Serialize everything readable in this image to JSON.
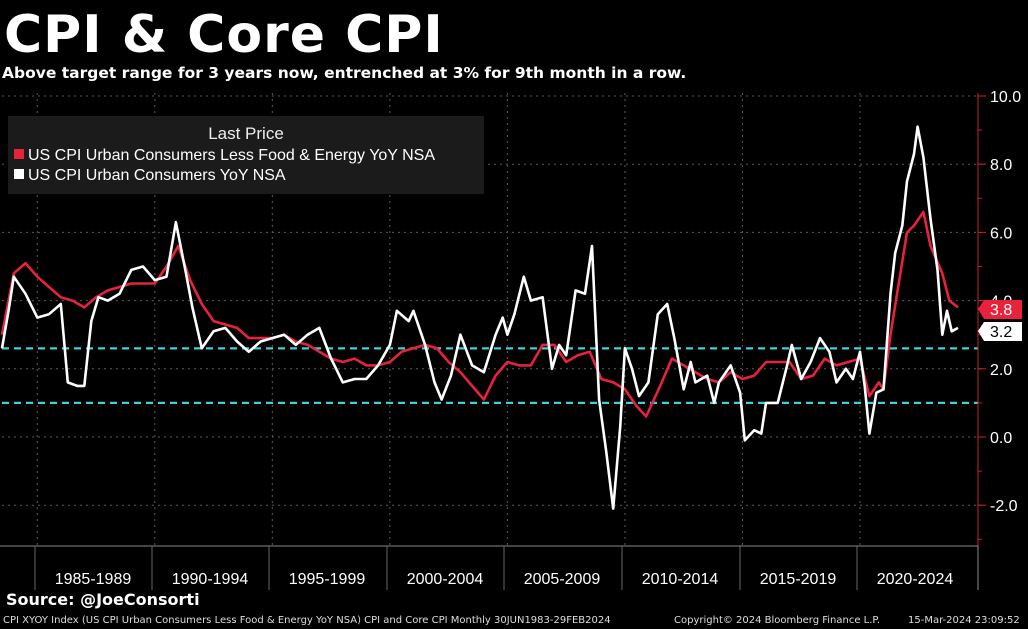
{
  "title": "CPI & Core CPI",
  "subtitle": "Above target range for 3 years now, entrenched at 3% for 9th month in a row.",
  "legend": {
    "title": "Last Price",
    "items": [
      {
        "label": "US CPI Urban Consumers Less Food & Energy YoY NSA",
        "color": "#e8213c"
      },
      {
        "label": "US CPI Urban Consumers YoY NSA",
        "color": "#ffffff"
      }
    ]
  },
  "source": "Source: @JoeConsorti",
  "footer": {
    "left": "CPI XYOY Index (US CPI Urban Consumers Less Food & Energy YoY NSA) CPI and Core CPI  Monthly 30JUN1983-29FEB2024",
    "center": "Copyright© 2024 Bloomberg Finance L.P.",
    "right": "15-Mar-2024 23:09:52"
  },
  "chart_data": {
    "type": "line",
    "x_range": [
      1983.5,
      2024.17
    ],
    "ylim": [
      -3.2,
      10.3
    ],
    "y_ticks": [
      "10.0",
      "8.0",
      "6.0",
      "4.0",
      "2.0",
      "0.0",
      "-2.0"
    ],
    "y_tick_values": [
      10,
      8,
      6,
      4,
      2,
      0,
      -2
    ],
    "x_tick_labels": [
      "1985-1989",
      "1990-1994",
      "1995-1999",
      "2000-2004",
      "2005-2009",
      "2010-2014",
      "2015-2019",
      "2020-2024"
    ],
    "grid": true,
    "legend_position": "top-left",
    "reference_lines": [
      {
        "value": 2.6,
        "color": "#3fd0d8",
        "style": "dashed"
      },
      {
        "value": 1.0,
        "color": "#3fd0d8",
        "style": "dashed"
      }
    ],
    "series": [
      {
        "name": "US CPI Urban Consumers Less Food & Energy YoY NSA",
        "color": "#e8213c",
        "last_label": "3.8",
        "points": [
          [
            1983.5,
            3.0
          ],
          [
            1984.0,
            4.8
          ],
          [
            1984.5,
            5.1
          ],
          [
            1985.0,
            4.7
          ],
          [
            1985.5,
            4.4
          ],
          [
            1986.0,
            4.1
          ],
          [
            1986.5,
            4.0
          ],
          [
            1987.0,
            3.8
          ],
          [
            1987.5,
            4.1
          ],
          [
            1988.0,
            4.3
          ],
          [
            1988.5,
            4.4
          ],
          [
            1989.0,
            4.5
          ],
          [
            1989.5,
            4.5
          ],
          [
            1990.0,
            4.5
          ],
          [
            1990.5,
            5.0
          ],
          [
            1991.0,
            5.6
          ],
          [
            1991.5,
            4.6
          ],
          [
            1992.0,
            3.9
          ],
          [
            1992.5,
            3.4
          ],
          [
            1993.0,
            3.3
          ],
          [
            1993.5,
            3.2
          ],
          [
            1994.0,
            2.9
          ],
          [
            1994.5,
            2.9
          ],
          [
            1995.0,
            2.9
          ],
          [
            1995.5,
            3.0
          ],
          [
            1996.0,
            2.8
          ],
          [
            1996.5,
            2.7
          ],
          [
            1997.0,
            2.5
          ],
          [
            1997.5,
            2.3
          ],
          [
            1998.0,
            2.2
          ],
          [
            1998.5,
            2.3
          ],
          [
            1999.0,
            2.1
          ],
          [
            1999.5,
            2.1
          ],
          [
            2000.0,
            2.2
          ],
          [
            2000.5,
            2.5
          ],
          [
            2001.0,
            2.6
          ],
          [
            2001.5,
            2.7
          ],
          [
            2002.0,
            2.6
          ],
          [
            2002.5,
            2.2
          ],
          [
            2003.0,
            1.9
          ],
          [
            2003.5,
            1.5
          ],
          [
            2004.0,
            1.1
          ],
          [
            2004.5,
            1.8
          ],
          [
            2005.0,
            2.2
          ],
          [
            2005.5,
            2.1
          ],
          [
            2006.0,
            2.1
          ],
          [
            2006.5,
            2.7
          ],
          [
            2007.0,
            2.7
          ],
          [
            2007.5,
            2.2
          ],
          [
            2008.0,
            2.4
          ],
          [
            2008.5,
            2.5
          ],
          [
            2009.0,
            1.7
          ],
          [
            2009.5,
            1.6
          ],
          [
            2010.0,
            1.4
          ],
          [
            2010.5,
            0.9
          ],
          [
            2010.9,
            0.6
          ],
          [
            2011.5,
            1.5
          ],
          [
            2012.0,
            2.3
          ],
          [
            2012.5,
            2.1
          ],
          [
            2013.0,
            1.9
          ],
          [
            2013.5,
            1.7
          ],
          [
            2014.0,
            1.6
          ],
          [
            2014.5,
            1.9
          ],
          [
            2015.0,
            1.7
          ],
          [
            2015.5,
            1.8
          ],
          [
            2016.0,
            2.2
          ],
          [
            2016.5,
            2.2
          ],
          [
            2017.0,
            2.2
          ],
          [
            2017.5,
            1.7
          ],
          [
            2018.0,
            1.8
          ],
          [
            2018.5,
            2.3
          ],
          [
            2019.0,
            2.1
          ],
          [
            2019.5,
            2.2
          ],
          [
            2020.0,
            2.3
          ],
          [
            2020.4,
            1.2
          ],
          [
            2020.8,
            1.6
          ],
          [
            2021.0,
            1.4
          ],
          [
            2021.3,
            3.0
          ],
          [
            2021.6,
            4.3
          ],
          [
            2022.0,
            6.0
          ],
          [
            2022.3,
            6.2
          ],
          [
            2022.7,
            6.6
          ],
          [
            2023.0,
            5.6
          ],
          [
            2023.5,
            4.8
          ],
          [
            2023.8,
            4.0
          ],
          [
            2024.17,
            3.8
          ]
        ]
      },
      {
        "name": "US CPI Urban Consumers YoY NSA",
        "color": "#ffffff",
        "last_label": "3.2",
        "points": [
          [
            1983.5,
            2.6
          ],
          [
            1983.8,
            3.8
          ],
          [
            1984.0,
            4.7
          ],
          [
            1984.5,
            4.2
          ],
          [
            1985.0,
            3.5
          ],
          [
            1985.5,
            3.6
          ],
          [
            1986.0,
            3.9
          ],
          [
            1986.3,
            1.6
          ],
          [
            1986.7,
            1.5
          ],
          [
            1987.0,
            1.5
          ],
          [
            1987.3,
            3.4
          ],
          [
            1987.6,
            4.1
          ],
          [
            1988.0,
            4.0
          ],
          [
            1988.5,
            4.2
          ],
          [
            1989.0,
            4.9
          ],
          [
            1989.5,
            5.0
          ],
          [
            1990.0,
            4.6
          ],
          [
            1990.5,
            4.7
          ],
          [
            1990.9,
            6.3
          ],
          [
            1991.3,
            4.9
          ],
          [
            1991.6,
            3.8
          ],
          [
            1992.0,
            2.6
          ],
          [
            1992.5,
            3.1
          ],
          [
            1993.0,
            3.2
          ],
          [
            1993.5,
            2.8
          ],
          [
            1994.0,
            2.5
          ],
          [
            1994.5,
            2.8
          ],
          [
            1995.0,
            2.9
          ],
          [
            1995.5,
            3.0
          ],
          [
            1996.0,
            2.7
          ],
          [
            1996.5,
            3.0
          ],
          [
            1997.0,
            3.2
          ],
          [
            1997.5,
            2.3
          ],
          [
            1998.0,
            1.6
          ],
          [
            1998.5,
            1.7
          ],
          [
            1999.0,
            1.7
          ],
          [
            1999.5,
            2.1
          ],
          [
            2000.0,
            2.7
          ],
          [
            2000.3,
            3.7
          ],
          [
            2000.8,
            3.4
          ],
          [
            2001.0,
            3.7
          ],
          [
            2001.5,
            2.7
          ],
          [
            2001.9,
            1.6
          ],
          [
            2002.2,
            1.1
          ],
          [
            2002.6,
            1.8
          ],
          [
            2003.0,
            3.0
          ],
          [
            2003.5,
            2.1
          ],
          [
            2004.0,
            1.9
          ],
          [
            2004.5,
            3.0
          ],
          [
            2004.8,
            3.5
          ],
          [
            2005.0,
            3.0
          ],
          [
            2005.3,
            3.6
          ],
          [
            2005.7,
            4.7
          ],
          [
            2006.0,
            4.0
          ],
          [
            2006.5,
            4.1
          ],
          [
            2006.9,
            2.0
          ],
          [
            2007.2,
            2.7
          ],
          [
            2007.5,
            2.4
          ],
          [
            2007.9,
            4.3
          ],
          [
            2008.3,
            4.2
          ],
          [
            2008.6,
            5.6
          ],
          [
            2008.9,
            1.1
          ],
          [
            2009.2,
            -0.4
          ],
          [
            2009.5,
            -2.1
          ],
          [
            2009.8,
            0.3
          ],
          [
            2010.0,
            2.6
          ],
          [
            2010.3,
            2.0
          ],
          [
            2010.6,
            1.2
          ],
          [
            2011.0,
            1.6
          ],
          [
            2011.4,
            3.6
          ],
          [
            2011.8,
            3.9
          ],
          [
            2012.1,
            2.9
          ],
          [
            2012.5,
            1.4
          ],
          [
            2012.8,
            2.2
          ],
          [
            2013.0,
            1.6
          ],
          [
            2013.5,
            1.8
          ],
          [
            2013.8,
            1.0
          ],
          [
            2014.0,
            1.6
          ],
          [
            2014.5,
            2.1
          ],
          [
            2014.9,
            1.3
          ],
          [
            2015.1,
            -0.1
          ],
          [
            2015.5,
            0.2
          ],
          [
            2015.8,
            0.1
          ],
          [
            2016.0,
            1.0
          ],
          [
            2016.5,
            1.0
          ],
          [
            2016.9,
            2.1
          ],
          [
            2017.1,
            2.7
          ],
          [
            2017.5,
            1.7
          ],
          [
            2017.9,
            2.2
          ],
          [
            2018.3,
            2.9
          ],
          [
            2018.7,
            2.5
          ],
          [
            2019.0,
            1.6
          ],
          [
            2019.4,
            2.0
          ],
          [
            2019.7,
            1.7
          ],
          [
            2020.0,
            2.5
          ],
          [
            2020.2,
            1.5
          ],
          [
            2020.4,
            0.1
          ],
          [
            2020.7,
            1.3
          ],
          [
            2021.0,
            1.4
          ],
          [
            2021.3,
            4.2
          ],
          [
            2021.5,
            5.4
          ],
          [
            2021.8,
            6.2
          ],
          [
            2022.0,
            7.5
          ],
          [
            2022.3,
            8.3
          ],
          [
            2022.45,
            9.1
          ],
          [
            2022.7,
            8.2
          ],
          [
            2023.0,
            6.4
          ],
          [
            2023.3,
            4.9
          ],
          [
            2023.5,
            3.0
          ],
          [
            2023.7,
            3.7
          ],
          [
            2023.9,
            3.1
          ],
          [
            2024.17,
            3.2
          ]
        ]
      }
    ]
  }
}
